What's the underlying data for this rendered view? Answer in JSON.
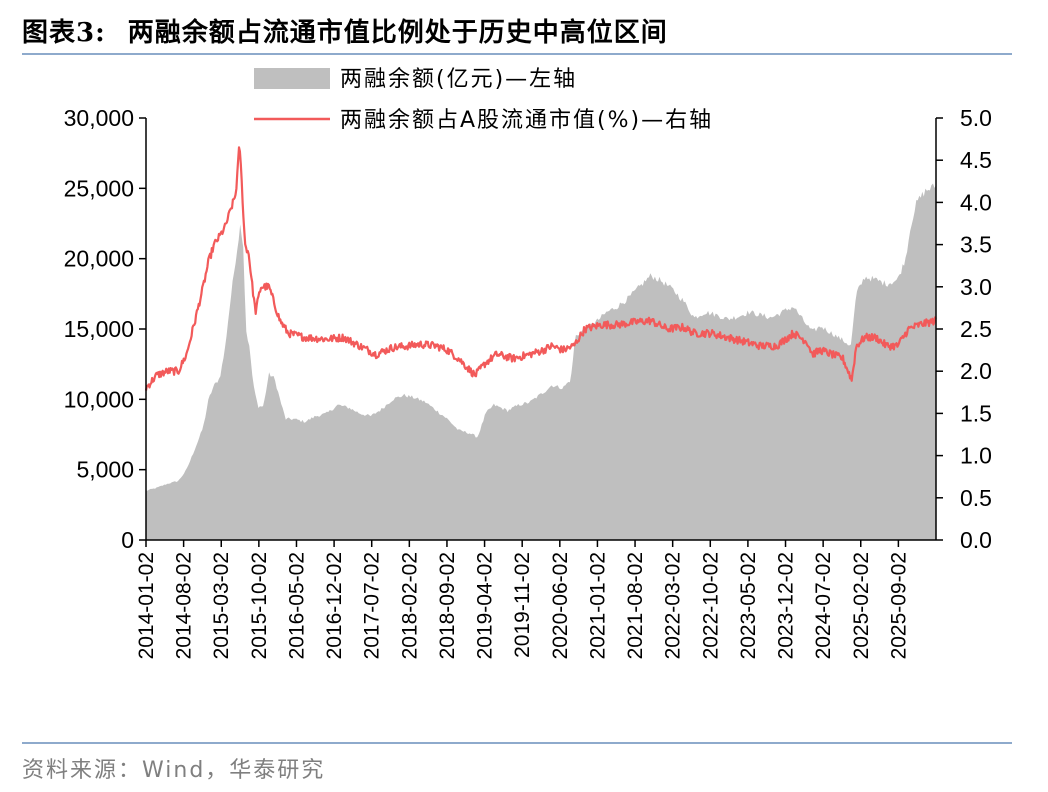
{
  "header": {
    "figure_label": "图表3:",
    "title": "两融余额占流通市值比例处于历史中高位区间"
  },
  "source": "资料来源：Wind，华泰研究",
  "colors": {
    "area": "#bfbfbf",
    "line": "#f25a5a",
    "rule": "#8eaacc"
  },
  "chart_data": {
    "type": "area",
    "legend": [
      {
        "name": "两融余额(亿元)—左轴",
        "style": "area"
      },
      {
        "name": "两融余额占A股流通市值(%)—右轴",
        "style": "line"
      }
    ],
    "x_tick_labels": [
      "2014-01-02",
      "2014-08-02",
      "2015-03-02",
      "2015-10-02",
      "2016-05-02",
      "2016-12-02",
      "2017-07-02",
      "2018-02-02",
      "2018-09-02",
      "2019-04-02",
      "2019-11-02",
      "2020-06-02",
      "2021-01-02",
      "2021-08-02",
      "2022-03-02",
      "2022-10-02",
      "2023-05-02",
      "2023-12-02",
      "2024-07-02",
      "2025-02-02",
      "2025-09-02"
    ],
    "left_axis": {
      "ticks": [
        "0",
        "5,000",
        "10,000",
        "15,000",
        "20,000",
        "25,000",
        "30,000"
      ],
      "ylim": [
        0,
        30000
      ]
    },
    "right_axis": {
      "ticks": [
        "0.0",
        "0.5",
        "1.0",
        "1.5",
        "2.0",
        "2.5",
        "3.0",
        "3.5",
        "4.0",
        "4.5",
        "5.0"
      ],
      "ylim": [
        0,
        5
      ]
    },
    "series": [
      {
        "name": "两融余额(亿元)—左轴",
        "axis": "left",
        "points": [
          [
            "2014-01-02",
            3500
          ],
          [
            "2014-03-01",
            3700
          ],
          [
            "2014-05-01",
            4000
          ],
          [
            "2014-07-01",
            4200
          ],
          [
            "2014-08-15",
            5000
          ],
          [
            "2014-10-01",
            6500
          ],
          [
            "2014-11-15",
            8000
          ],
          [
            "2014-12-15",
            10000
          ],
          [
            "2015-01-15",
            11000
          ],
          [
            "2015-02-15",
            11500
          ],
          [
            "2015-03-15",
            13500
          ],
          [
            "2015-04-15",
            17000
          ],
          [
            "2015-05-15",
            20000
          ],
          [
            "2015-06-10",
            22500
          ],
          [
            "2015-06-25",
            21000
          ],
          [
            "2015-07-10",
            15000
          ],
          [
            "2015-08-01",
            13500
          ],
          [
            "2015-08-20",
            11000
          ],
          [
            "2015-09-15",
            9500
          ],
          [
            "2015-10-15",
            9500
          ],
          [
            "2015-11-15",
            11800
          ],
          [
            "2015-12-15",
            11500
          ],
          [
            "2016-01-15",
            10000
          ],
          [
            "2016-02-15",
            8600
          ],
          [
            "2016-04-01",
            8600
          ],
          [
            "2016-06-01",
            8400
          ],
          [
            "2016-08-01",
            8800
          ],
          [
            "2016-10-01",
            9000
          ],
          [
            "2016-12-01",
            9600
          ],
          [
            "2017-02-01",
            9400
          ],
          [
            "2017-04-01",
            9000
          ],
          [
            "2017-06-01",
            8800
          ],
          [
            "2017-08-01",
            9300
          ],
          [
            "2017-10-01",
            10000
          ],
          [
            "2017-12-01",
            10300
          ],
          [
            "2018-02-01",
            10100
          ],
          [
            "2018-04-01",
            9800
          ],
          [
            "2018-06-01",
            9200
          ],
          [
            "2018-08-01",
            8600
          ],
          [
            "2018-10-01",
            7800
          ],
          [
            "2018-12-01",
            7600
          ],
          [
            "2019-01-15",
            7300
          ],
          [
            "2019-03-01",
            9000
          ],
          [
            "2019-04-15",
            9600
          ],
          [
            "2019-07-01",
            9200
          ],
          [
            "2019-09-01",
            9600
          ],
          [
            "2019-11-01",
            9800
          ],
          [
            "2020-01-15",
            10500
          ],
          [
            "2020-03-01",
            11000
          ],
          [
            "2020-05-01",
            10800
          ],
          [
            "2020-06-15",
            11400
          ],
          [
            "2020-07-10",
            14500
          ],
          [
            "2020-09-01",
            15000
          ],
          [
            "2020-11-01",
            15500
          ],
          [
            "2021-01-01",
            16200
          ],
          [
            "2021-03-01",
            16600
          ],
          [
            "2021-05-01",
            17200
          ],
          [
            "2021-07-01",
            18000
          ],
          [
            "2021-09-01",
            18800
          ],
          [
            "2021-11-01",
            18400
          ],
          [
            "2022-01-01",
            17800
          ],
          [
            "2022-03-01",
            17000
          ],
          [
            "2022-05-01",
            15800
          ],
          [
            "2022-07-01",
            16200
          ],
          [
            "2022-09-01",
            16000
          ],
          [
            "2022-11-01",
            15700
          ],
          [
            "2023-01-01",
            15900
          ],
          [
            "2023-03-01",
            16200
          ],
          [
            "2023-05-01",
            16000
          ],
          [
            "2023-07-01",
            15800
          ],
          [
            "2023-09-01",
            16200
          ],
          [
            "2023-11-01",
            16600
          ],
          [
            "2024-01-01",
            15500
          ],
          [
            "2024-02-15",
            14800
          ],
          [
            "2024-04-01",
            15200
          ],
          [
            "2024-06-01",
            14700
          ],
          [
            "2024-08-01",
            14200
          ],
          [
            "2024-09-15",
            13800
          ],
          [
            "2024-10-15",
            17500
          ],
          [
            "2024-12-01",
            18700
          ],
          [
            "2025-02-01",
            18500
          ],
          [
            "2025-04-01",
            18200
          ],
          [
            "2025-06-01",
            18500
          ],
          [
            "2025-07-15",
            20000
          ],
          [
            "2025-08-15",
            22500
          ],
          [
            "2025-09-15",
            24000
          ],
          [
            "2025-11-01",
            24800
          ],
          [
            "2025-12-31",
            25200
          ]
        ]
      },
      {
        "name": "两融余额占A股流通市值(%)—右轴",
        "axis": "right",
        "points": [
          [
            "2014-01-02",
            1.8
          ],
          [
            "2014-03-01",
            1.95
          ],
          [
            "2014-05-01",
            2.0
          ],
          [
            "2014-07-01",
            2.0
          ],
          [
            "2014-08-15",
            2.2
          ],
          [
            "2014-10-01",
            2.6
          ],
          [
            "2014-11-15",
            3.0
          ],
          [
            "2014-12-15",
            3.3
          ],
          [
            "2015-01-15",
            3.5
          ],
          [
            "2015-02-15",
            3.6
          ],
          [
            "2015-03-15",
            3.7
          ],
          [
            "2015-04-15",
            3.9
          ],
          [
            "2015-05-15",
            4.1
          ],
          [
            "2015-06-05",
            4.7
          ],
          [
            "2015-06-20",
            4.1
          ],
          [
            "2015-07-05",
            3.5
          ],
          [
            "2015-07-25",
            3.4
          ],
          [
            "2015-08-15",
            3.0
          ],
          [
            "2015-09-01",
            2.7
          ],
          [
            "2015-10-01",
            3.0
          ],
          [
            "2015-11-15",
            3.0
          ],
          [
            "2015-12-15",
            2.8
          ],
          [
            "2016-01-15",
            2.6
          ],
          [
            "2016-03-01",
            2.45
          ],
          [
            "2016-06-01",
            2.4
          ],
          [
            "2016-10-01",
            2.38
          ],
          [
            "2017-01-01",
            2.4
          ],
          [
            "2017-04-01",
            2.3
          ],
          [
            "2017-07-01",
            2.2
          ],
          [
            "2017-10-01",
            2.28
          ],
          [
            "2018-01-01",
            2.3
          ],
          [
            "2018-03-01",
            2.32
          ],
          [
            "2018-06-01",
            2.3
          ],
          [
            "2018-08-01",
            2.25
          ],
          [
            "2018-10-01",
            2.15
          ],
          [
            "2019-01-01",
            1.95
          ],
          [
            "2019-03-01",
            2.1
          ],
          [
            "2019-05-01",
            2.2
          ],
          [
            "2019-08-01",
            2.15
          ],
          [
            "2019-11-01",
            2.2
          ],
          [
            "2020-01-15",
            2.25
          ],
          [
            "2020-03-01",
            2.3
          ],
          [
            "2020-05-01",
            2.25
          ],
          [
            "2020-07-01",
            2.3
          ],
          [
            "2020-09-01",
            2.5
          ],
          [
            "2020-12-01",
            2.55
          ],
          [
            "2021-03-01",
            2.55
          ],
          [
            "2021-06-01",
            2.58
          ],
          [
            "2021-09-01",
            2.6
          ],
          [
            "2021-12-01",
            2.5
          ],
          [
            "2022-03-01",
            2.52
          ],
          [
            "2022-05-01",
            2.45
          ],
          [
            "2022-08-01",
            2.45
          ],
          [
            "2022-11-01",
            2.4
          ],
          [
            "2023-02-01",
            2.35
          ],
          [
            "2023-05-01",
            2.3
          ],
          [
            "2023-08-01",
            2.3
          ],
          [
            "2023-11-01",
            2.45
          ],
          [
            "2024-01-15",
            2.35
          ],
          [
            "2024-02-15",
            2.2
          ],
          [
            "2024-04-01",
            2.25
          ],
          [
            "2024-06-01",
            2.2
          ],
          [
            "2024-08-01",
            2.15
          ],
          [
            "2024-09-20",
            1.9
          ],
          [
            "2024-10-15",
            2.3
          ],
          [
            "2024-12-01",
            2.4
          ],
          [
            "2025-02-01",
            2.4
          ],
          [
            "2025-04-01",
            2.3
          ],
          [
            "2025-06-01",
            2.3
          ],
          [
            "2025-08-01",
            2.5
          ],
          [
            "2025-10-01",
            2.55
          ],
          [
            "2025-12-31",
            2.6
          ]
        ]
      }
    ]
  }
}
